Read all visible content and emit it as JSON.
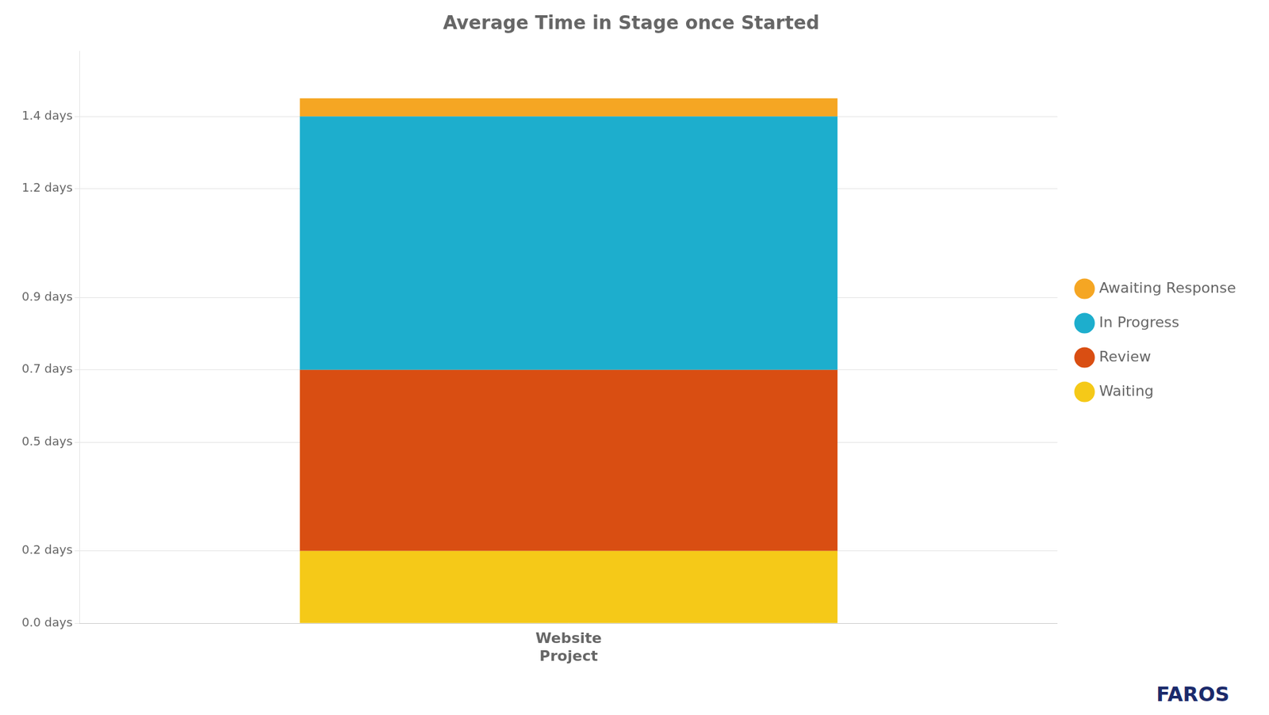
{
  "chart_data": {
    "type": "bar",
    "title": "Average Time in Stage once Started",
    "categories": [
      "Website\nProject"
    ],
    "series": [
      {
        "name": "Waiting",
        "color": "#F5C918",
        "values": [
          0.2
        ]
      },
      {
        "name": "Review",
        "color": "#D94E12",
        "values": [
          0.5
        ]
      },
      {
        "name": "In Progress",
        "color": "#1DAECD",
        "values": [
          0.7
        ]
      },
      {
        "name": "Awaiting Response",
        "color": "#F5A623",
        "values": [
          0.05
        ]
      }
    ],
    "stacked": true,
    "ylim": [
      0,
      1.58
    ],
    "yticks": [
      {
        "value": 0.0,
        "label": "0.0 days"
      },
      {
        "value": 0.2,
        "label": "0.2 days"
      },
      {
        "value": 0.5,
        "label": "0.5 days"
      },
      {
        "value": 0.7,
        "label": "0.7 days"
      },
      {
        "value": 0.9,
        "label": "0.9 days"
      },
      {
        "value": 1.2,
        "label": "1.2 days"
      },
      {
        "value": 1.4,
        "label": "1.4 days"
      }
    ],
    "grid": true,
    "legend": "right",
    "annotations": [
      "FAROS"
    ]
  }
}
